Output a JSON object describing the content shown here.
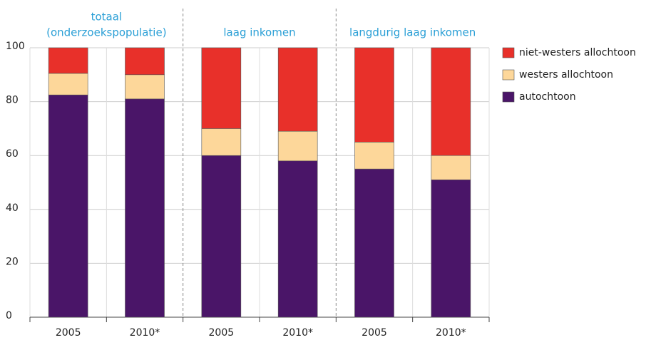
{
  "chart_data": {
    "type": "stacked_bar",
    "groups": [
      [
        "totaal",
        "(onderzoekspopulatie)"
      ],
      [
        "laag inkomen"
      ],
      [
        "langdurig laag inkomen"
      ]
    ],
    "categories": [
      "2005",
      "2010*",
      "2005",
      "2010*",
      "2005",
      "2010*"
    ],
    "series": [
      {
        "name": "autochtoon",
        "color": "#4a1568",
        "values": [
          82.5,
          81,
          60,
          58,
          55,
          51
        ]
      },
      {
        "name": "westers allochtoon",
        "color": "#fdd79a",
        "values": [
          8,
          9,
          10,
          11,
          10,
          9
        ]
      },
      {
        "name": "niet-westers allochtoon",
        "color": "#e8302a",
        "values": [
          9.5,
          10,
          30,
          31,
          35,
          40
        ]
      }
    ],
    "ylim": [
      0,
      100
    ],
    "yticks": [
      0,
      20,
      40,
      60,
      80,
      100
    ],
    "grid": true
  }
}
